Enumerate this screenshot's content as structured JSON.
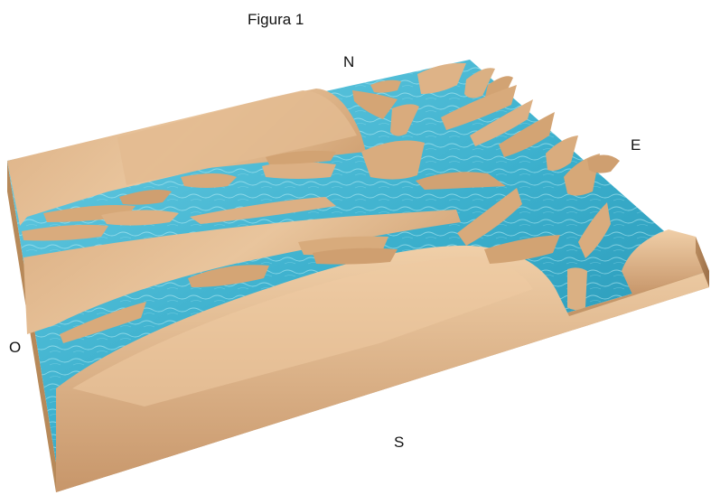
{
  "figure": {
    "title": "Figura 1",
    "compass": {
      "north": "N",
      "east": "E",
      "west": "O",
      "south": "S"
    }
  },
  "colors": {
    "sand_light": "#e8c39a",
    "sand_mid": "#d7aa7b",
    "sand_dark": "#b98a5d",
    "sand_edge": "#c89a6c",
    "water_light": "#7fd6e8",
    "water_mid": "#3fb3cf",
    "water_dark": "#1f86a6"
  }
}
